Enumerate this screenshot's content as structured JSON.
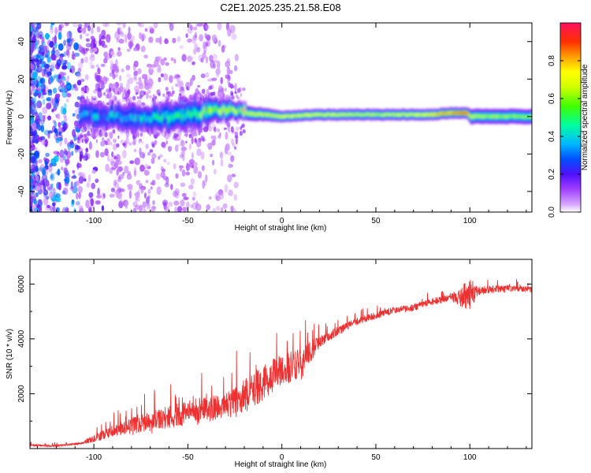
{
  "title": "C2E1.2025.235.21.58.E08",
  "chart_data": [
    {
      "type": "heatmap",
      "name": "spectrogram",
      "xlabel": "Height of straight line (km)",
      "ylabel": "Frequency (Hz)",
      "xlim": [
        -134,
        133
      ],
      "ylim": [
        -51,
        50
      ],
      "xticks": [
        -100,
        -50,
        0,
        50,
        100
      ],
      "xtick_labels": [
        "-100",
        "-50",
        "0",
        "50",
        "100"
      ],
      "yticks": [
        -40,
        -20,
        0,
        20,
        40
      ],
      "ytick_labels": [
        "-40",
        "-20",
        "0",
        "20",
        "40"
      ],
      "colorbar": {
        "label": "Normalized spectral amplitude",
        "range": [
          0,
          1
        ],
        "ticks": [
          0,
          0.2,
          0.4,
          0.6,
          0.8
        ],
        "tick_labels": [
          "0.0",
          "0.2",
          "0.4",
          "0.6",
          "0.8"
        ],
        "colors": [
          "#ffffff",
          "#c070ff",
          "#7000ff",
          "#0040ff",
          "#00c0ff",
          "#00ffa0",
          "#40ff00",
          "#c0ff00",
          "#ffff00",
          "#ffa000",
          "#ff3000",
          "#ff1060"
        ]
      },
      "band": {
        "x": [
          -108,
          -90,
          -70,
          -50,
          -30,
          -20,
          0,
          20,
          50,
          80,
          90,
          98,
          100,
          110,
          133
        ],
        "center_hz": [
          1,
          0,
          -1,
          1,
          4,
          2,
          0,
          1,
          1,
          1,
          2,
          2,
          0,
          0,
          0
        ],
        "halfwidth_hz": [
          6,
          6,
          7,
          8,
          6,
          4,
          3,
          3,
          3,
          3,
          3,
          3,
          4,
          4,
          4
        ],
        "amplitude": [
          0.32,
          0.36,
          0.4,
          0.5,
          0.6,
          0.65,
          0.7,
          0.7,
          0.65,
          0.75,
          0.85,
          0.9,
          0.65,
          0.62,
          0.62
        ]
      }
    },
    {
      "type": "line",
      "name": "snr",
      "xlabel": "Height of straight line (km)",
      "ylabel": "SNR (10 * v/v)",
      "xlim": [
        -134,
        133
      ],
      "ylim": [
        0,
        6900
      ],
      "xticks": [
        -100,
        -50,
        0,
        50,
        100
      ],
      "xtick_labels": [
        "-100",
        "-50",
        "0",
        "50",
        "100"
      ],
      "yticks": [
        2000,
        4000,
        6000
      ],
      "ytick_labels": [
        "2000",
        "4000",
        "6000"
      ],
      "color": "#ee3030",
      "trend": {
        "x": [
          -134,
          -120,
          -108,
          -100,
          -90,
          -80,
          -70,
          -60,
          -50,
          -40,
          -30,
          -20,
          -10,
          0,
          10,
          20,
          30,
          40,
          50,
          60,
          70,
          80,
          90,
          95,
          100,
          105,
          110,
          120,
          133
        ],
        "y": [
          120,
          100,
          180,
          350,
          650,
          850,
          1000,
          1150,
          1300,
          1450,
          1600,
          1900,
          2400,
          2900,
          3100,
          3900,
          4300,
          4650,
          4850,
          5050,
          5150,
          5350,
          5500,
          5550,
          5600,
          5750,
          5800,
          5850,
          5800
        ]
      },
      "noise_amplitude": {
        "x": [
          -134,
          -108,
          -100,
          -80,
          -60,
          -40,
          -20,
          -10,
          0,
          10,
          20,
          40,
          60,
          90,
          96,
          100,
          104,
          133
        ],
        "y": [
          80,
          80,
          250,
          600,
          800,
          1000,
          1200,
          1300,
          1100,
          1200,
          400,
          250,
          250,
          250,
          900,
          1300,
          300,
          200
        ]
      }
    }
  ]
}
